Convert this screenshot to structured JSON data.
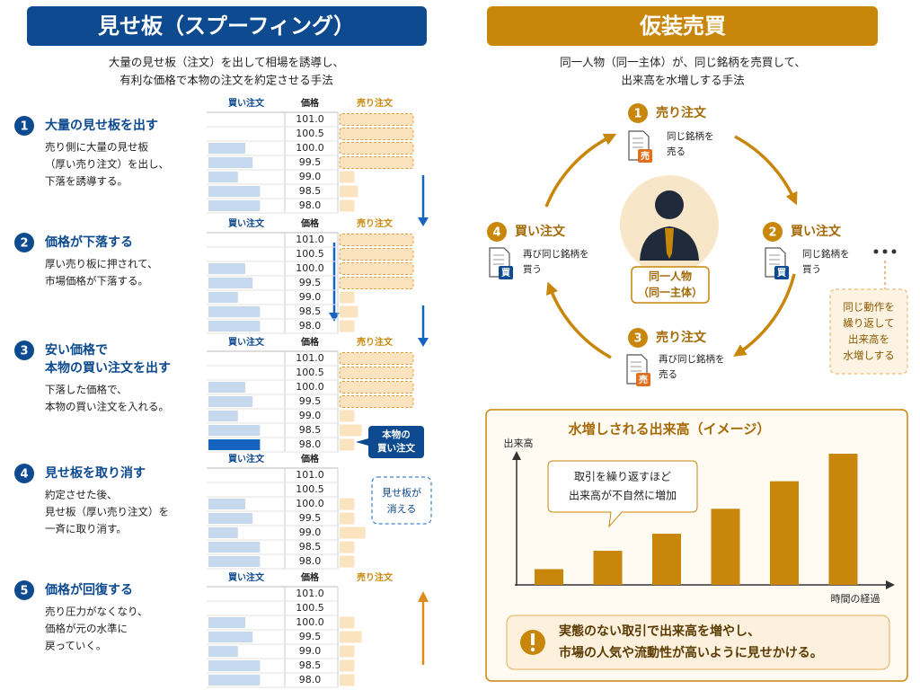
{
  "left": {
    "title": "見せ板（スプーフィング）",
    "subtitle": [
      "大量の見せ板（注文）を出して相場を誘導し、",
      "有利な価格で本物の注文を約定させる手法"
    ],
    "steps": [
      {
        "number": "1",
        "heading": [
          "大量の見せ板を出す"
        ],
        "body": [
          "売り側に大量の見せ板",
          "（厚い売り注文）を出し、",
          "下落を誘導する。"
        ]
      },
      {
        "number": "2",
        "heading": [
          "価格が下落する"
        ],
        "body": [
          "厚い売り板に押されて、",
          "市場価格が下落する。"
        ]
      },
      {
        "number": "3",
        "heading": [
          "安い価格で",
          "本物の買い注文を出す"
        ],
        "body": [
          "下落した価格で、",
          "本物の買い注文を入れる。"
        ]
      },
      {
        "number": "4",
        "heading": [
          "見せ板を取り消す"
        ],
        "body": [
          "約定させた後、",
          "見せ板（厚い売り注文）を",
          "一斉に取り消す。"
        ]
      },
      {
        "number": "5",
        "heading": [
          "価格が回復する"
        ],
        "body": [
          "売り圧力がなくなり、",
          "価格が元の水準に",
          "戻っていく。"
        ]
      }
    ],
    "headers": {
      "buy": "買い注文",
      "price": "価格",
      "sell": "売り注文"
    },
    "prices": [
      "101.0",
      "100.5",
      "100.0",
      "99.5",
      "99.0",
      "98.5",
      "98.0"
    ],
    "books": [
      {
        "show_sell_header": true,
        "spoof_rows": 4,
        "buy": [
          0,
          0,
          5,
          6,
          4,
          7,
          7
        ],
        "sell": [
          10,
          10,
          10,
          10,
          2,
          2.5,
          2
        ]
      },
      {
        "show_sell_header": true,
        "spoof_rows": 4,
        "buy": [
          0,
          0,
          5,
          6,
          4,
          7,
          7
        ],
        "sell": [
          10,
          10,
          10,
          10,
          2,
          2.5,
          2
        ]
      },
      {
        "show_sell_header": true,
        "spoof_rows": 4,
        "highlight_row": 6,
        "buy": [
          0,
          0,
          5,
          6,
          4,
          7,
          7
        ],
        "sell": [
          10,
          10,
          10,
          10,
          2,
          3,
          2
        ]
      },
      {
        "show_sell_header": false,
        "spoof_rows": 0,
        "buy": [
          0,
          0,
          5,
          6,
          4,
          7,
          7
        ],
        "sell": [
          0,
          0,
          2,
          2,
          3.5,
          2,
          2
        ]
      },
      {
        "show_sell_header": true,
        "spoof_rows": 0,
        "buy": [
          0,
          0,
          5,
          6,
          4,
          7,
          7
        ],
        "sell": [
          0,
          0,
          2,
          3,
          2,
          2,
          2
        ]
      }
    ],
    "real_buy_label": [
      "本物の",
      "買い注文"
    ],
    "vanish_label": [
      "見せ板が",
      "消える"
    ]
  },
  "right": {
    "title": "仮装売買",
    "subtitle": [
      "同一人物（同一主体）が、同じ銘柄を売買して、",
      "出来高を水増しする手法"
    ],
    "nodes": [
      {
        "number": "1",
        "label": "売り注文",
        "icon": "売",
        "desc": [
          "同じ銘柄を",
          "売る"
        ]
      },
      {
        "number": "2",
        "label": "買い注文",
        "icon": "買",
        "desc": [
          "同じ銘柄を",
          "買う"
        ]
      },
      {
        "number": "3",
        "label": "売り注文",
        "icon": "売",
        "desc": [
          "再び同じ銘柄を",
          "売る"
        ]
      },
      {
        "number": "4",
        "label": "買い注文",
        "icon": "買",
        "desc": [
          "再び同じ銘柄を",
          "買う"
        ]
      }
    ],
    "center_label": [
      "同一人物",
      "（同一主体）"
    ],
    "repeat_note": [
      "同じ動作を",
      "繰り返して",
      "出来高を",
      "水増しする"
    ],
    "chart": {
      "type": "bar",
      "title": "水増しされる出来高（イメージ）",
      "y_label": "出来高",
      "x_label": "時間の経過",
      "callout": [
        "取引を繰り返すほど",
        "出来高が不自然に増加"
      ],
      "values": [
        12,
        26,
        39,
        58,
        79,
        100
      ],
      "ylim": [
        0,
        100
      ],
      "color": "#c8860b"
    },
    "warning": [
      "実態のない取引で出来高を増やし、",
      "市場の人気や流動性が高いように見せかける。"
    ]
  }
}
